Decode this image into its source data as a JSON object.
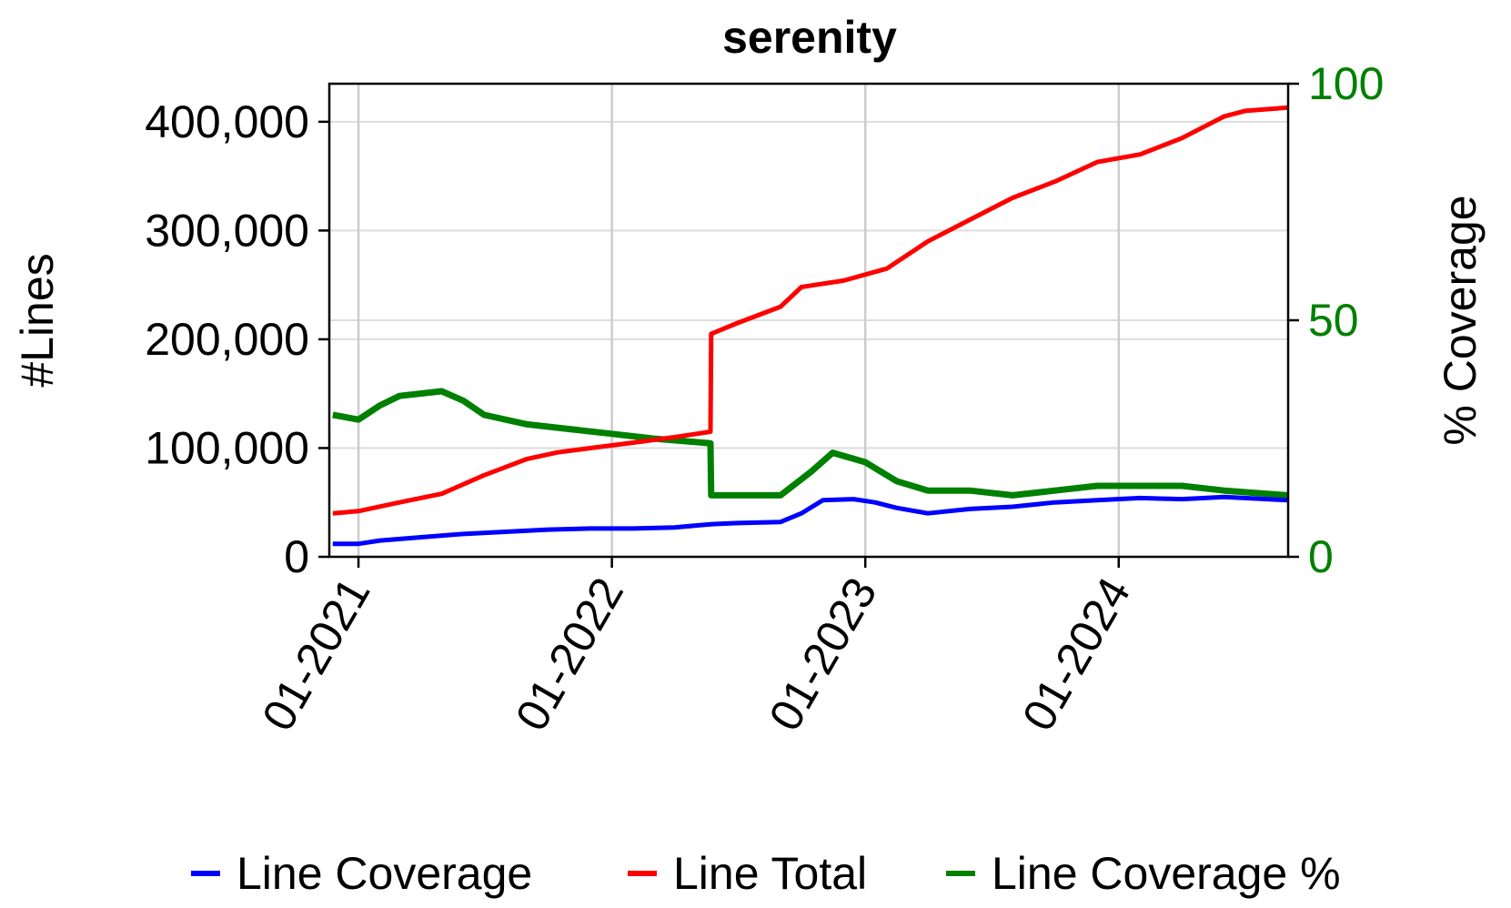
{
  "chart_data": {
    "type": "line",
    "title": "serenity",
    "xlabel": "",
    "ylabel": "#Lines",
    "y2label": "% Coverage",
    "x_ticks": [
      "01-2021",
      "01-2022",
      "01-2023",
      "01-2024"
    ],
    "x_range": [
      "2020-11-20",
      "2024-09-01"
    ],
    "ylim": [
      0,
      435000
    ],
    "y_ticks": [
      0,
      100000,
      200000,
      300000,
      400000
    ],
    "y_tick_labels": [
      "0",
      "100,000",
      "200,000",
      "300,000",
      "400,000"
    ],
    "y2lim": [
      0,
      100
    ],
    "y2_ticks": [
      0,
      50,
      100
    ],
    "y2_tick_labels": [
      "0",
      "50",
      "100"
    ],
    "grid": true,
    "legend_position": "bottom",
    "colors": {
      "line_coverage": "#0000ff",
      "line_total": "#ff0000",
      "line_coverage_pct": "#008000",
      "y2_axis": "#008000"
    },
    "series": [
      {
        "name": "Line Coverage",
        "axis": "left",
        "points": [
          [
            "2020-11-25",
            12000
          ],
          [
            "2021-01-01",
            12000
          ],
          [
            "2021-02-01",
            15000
          ],
          [
            "2021-04-01",
            18000
          ],
          [
            "2021-06-01",
            21000
          ],
          [
            "2021-08-01",
            23000
          ],
          [
            "2021-10-01",
            25000
          ],
          [
            "2021-12-01",
            26000
          ],
          [
            "2022-02-01",
            26000
          ],
          [
            "2022-04-01",
            27000
          ],
          [
            "2022-05-25",
            30000
          ],
          [
            "2022-07-01",
            31000
          ],
          [
            "2022-09-01",
            32000
          ],
          [
            "2022-10-01",
            40000
          ],
          [
            "2022-11-01",
            52000
          ],
          [
            "2022-12-15",
            53000
          ],
          [
            "2023-01-15",
            50000
          ],
          [
            "2023-02-15",
            45000
          ],
          [
            "2023-04-01",
            40000
          ],
          [
            "2023-06-01",
            44000
          ],
          [
            "2023-08-01",
            46000
          ],
          [
            "2023-10-01",
            50000
          ],
          [
            "2023-12-01",
            52000
          ],
          [
            "2024-02-01",
            54000
          ],
          [
            "2024-04-01",
            53000
          ],
          [
            "2024-06-01",
            55000
          ],
          [
            "2024-08-31",
            52000
          ]
        ]
      },
      {
        "name": "Line Total",
        "axis": "left",
        "points": [
          [
            "2020-11-25",
            40000
          ],
          [
            "2021-01-01",
            42000
          ],
          [
            "2021-03-01",
            50000
          ],
          [
            "2021-05-01",
            58000
          ],
          [
            "2021-07-01",
            75000
          ],
          [
            "2021-09-01",
            90000
          ],
          [
            "2021-10-15",
            96000
          ],
          [
            "2021-12-01",
            100000
          ],
          [
            "2022-02-01",
            105000
          ],
          [
            "2022-04-01",
            110000
          ],
          [
            "2022-05-23",
            115000
          ],
          [
            "2022-05-24",
            205000
          ],
          [
            "2022-07-01",
            215000
          ],
          [
            "2022-09-01",
            230000
          ],
          [
            "2022-10-01",
            248000
          ],
          [
            "2022-12-01",
            254000
          ],
          [
            "2023-02-01",
            265000
          ],
          [
            "2023-04-01",
            290000
          ],
          [
            "2023-06-01",
            310000
          ],
          [
            "2023-08-01",
            330000
          ],
          [
            "2023-10-01",
            345000
          ],
          [
            "2023-12-01",
            363000
          ],
          [
            "2024-02-01",
            370000
          ],
          [
            "2024-04-01",
            385000
          ],
          [
            "2024-06-01",
            405000
          ],
          [
            "2024-07-01",
            410000
          ],
          [
            "2024-08-31",
            413000
          ]
        ]
      },
      {
        "name": "Line Coverage %",
        "axis": "right",
        "points": [
          [
            "2020-11-25",
            30
          ],
          [
            "2021-01-01",
            29
          ],
          [
            "2021-02-01",
            32
          ],
          [
            "2021-03-01",
            34
          ],
          [
            "2021-05-01",
            35
          ],
          [
            "2021-06-01",
            33
          ],
          [
            "2021-07-01",
            30
          ],
          [
            "2021-09-01",
            28
          ],
          [
            "2021-11-01",
            27
          ],
          [
            "2022-01-01",
            26
          ],
          [
            "2022-03-01",
            25
          ],
          [
            "2022-05-23",
            24
          ],
          [
            "2022-05-24",
            13
          ],
          [
            "2022-07-01",
            13
          ],
          [
            "2022-09-01",
            13
          ],
          [
            "2022-10-15",
            18
          ],
          [
            "2022-11-15",
            22
          ],
          [
            "2023-01-01",
            20
          ],
          [
            "2023-02-15",
            16
          ],
          [
            "2023-04-01",
            14
          ],
          [
            "2023-06-01",
            14
          ],
          [
            "2023-08-01",
            13
          ],
          [
            "2023-10-01",
            14
          ],
          [
            "2023-12-01",
            15
          ],
          [
            "2024-02-01",
            15
          ],
          [
            "2024-04-01",
            15
          ],
          [
            "2024-06-01",
            14
          ],
          [
            "2024-08-31",
            13
          ]
        ]
      }
    ]
  }
}
